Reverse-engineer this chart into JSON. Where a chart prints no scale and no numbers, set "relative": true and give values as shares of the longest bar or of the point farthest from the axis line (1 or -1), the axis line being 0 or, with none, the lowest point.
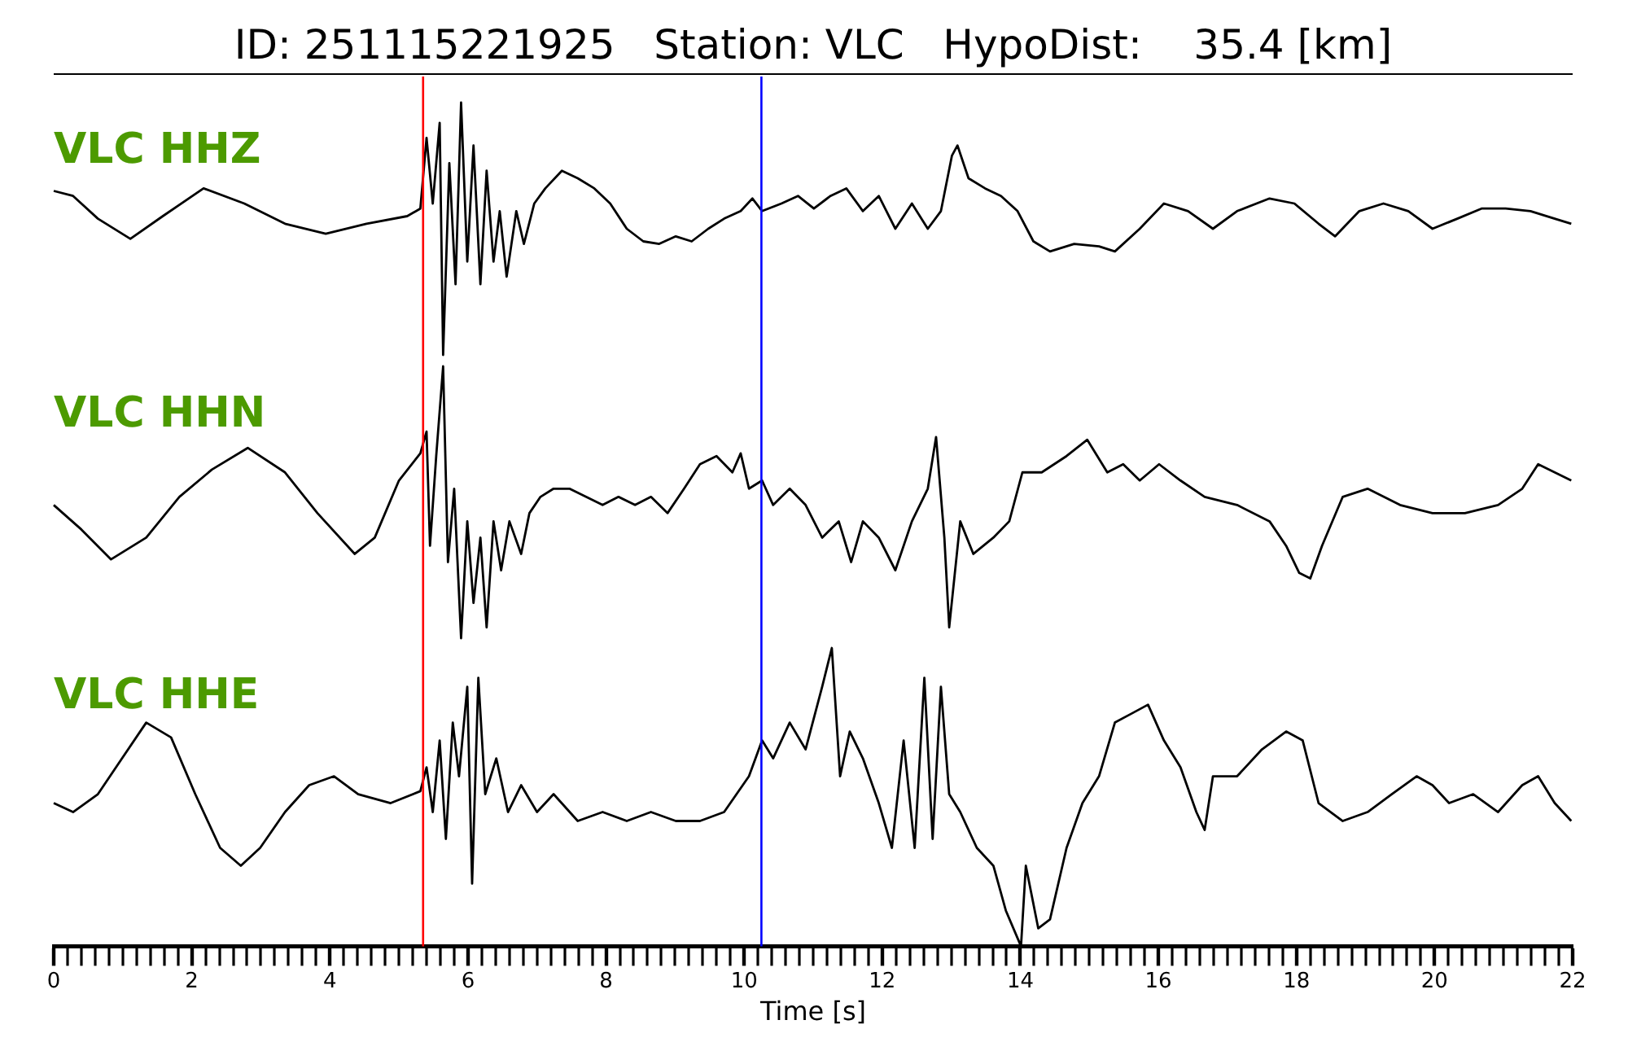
{
  "chart_data": [
    {
      "type": "line",
      "title": "ID: 251115221925   Station: VLC   HypoDist:    35.4 [km]",
      "relative": true,
      "xlim": [
        0,
        22
      ],
      "tick_labels": false,
      "ref_lines": [
        {
          "axis": "x",
          "value": 5.35,
          "color": "#ff0000"
        },
        {
          "axis": "x",
          "value": 10.25,
          "color": "#0000ff"
        }
      ],
      "series": [
        {
          "name": "VLC HHZ",
          "color": "#000000",
          "x": [
            0,
            0.28,
            0.64,
            1.11,
            1.58,
            2.17,
            2.76,
            3.35,
            3.94,
            4.53,
            5.12,
            5.31,
            5.4,
            5.49,
            5.59,
            5.64,
            5.73,
            5.82,
            5.9,
            5.99,
            6.08,
            6.18,
            6.27,
            6.37,
            6.46,
            6.56,
            6.7,
            6.81,
            6.96,
            7.12,
            7.36,
            7.59,
            7.83,
            8.06,
            8.3,
            8.54,
            8.77,
            9.01,
            9.24,
            9.48,
            9.71,
            9.95,
            10.12,
            10.26,
            10.54,
            10.78,
            11.01,
            11.25,
            11.48,
            11.72,
            11.95,
            12.19,
            12.43,
            12.66,
            12.85,
            13.01,
            13.09,
            13.25,
            13.49,
            13.72,
            13.96,
            14.19,
            14.43,
            14.78,
            15.14,
            15.37,
            15.73,
            16.08,
            16.43,
            16.79,
            17.14,
            17.61,
            17.97,
            18.32,
            18.56,
            18.91,
            19.26,
            19.62,
            19.97,
            20.33,
            20.68,
            21.03,
            21.39,
            21.74,
            21.98
          ],
          "values": [
            0.65,
            0.63,
            0.54,
            0.46,
            0.55,
            0.66,
            0.6,
            0.52,
            0.48,
            0.52,
            0.55,
            0.58,
            0.86,
            0.6,
            0.92,
            0,
            0.76,
            0.28,
            1,
            0.37,
            0.83,
            0.28,
            0.73,
            0.37,
            0.57,
            0.31,
            0.57,
            0.44,
            0.6,
            0.66,
            0.73,
            0.7,
            0.66,
            0.6,
            0.5,
            0.45,
            0.44,
            0.47,
            0.45,
            0.5,
            0.54,
            0.57,
            0.62,
            0.57,
            0.6,
            0.63,
            0.58,
            0.63,
            0.66,
            0.57,
            0.63,
            0.5,
            0.6,
            0.5,
            0.57,
            0.79,
            0.83,
            0.7,
            0.66,
            0.63,
            0.57,
            0.45,
            0.41,
            0.44,
            0.43,
            0.41,
            0.5,
            0.6,
            0.57,
            0.5,
            0.57,
            0.62,
            0.6,
            0.52,
            0.47,
            0.57,
            0.6,
            0.57,
            0.5,
            0.54,
            0.58,
            0.58,
            0.57,
            0.54,
            0.52
          ]
        }
      ]
    },
    {
      "type": "line",
      "relative": true,
      "xlim": [
        0,
        22
      ],
      "tick_labels": false,
      "ref_lines": [
        {
          "axis": "x",
          "value": 5.35,
          "color": "#ff0000"
        },
        {
          "axis": "x",
          "value": 10.25,
          "color": "#0000ff"
        }
      ],
      "series": [
        {
          "name": "VLC HHN",
          "color": "#000000",
          "x": [
            0,
            0.4,
            0.83,
            1.34,
            1.82,
            2.29,
            2.81,
            3.35,
            3.82,
            4.36,
            4.65,
            5.0,
            5.31,
            5.4,
            5.45,
            5.54,
            5.64,
            5.71,
            5.8,
            5.9,
            5.99,
            6.08,
            6.18,
            6.27,
            6.37,
            6.48,
            6.6,
            6.77,
            6.89,
            7.05,
            7.24,
            7.47,
            7.71,
            7.95,
            8.18,
            8.42,
            8.65,
            8.89,
            9.13,
            9.36,
            9.6,
            9.83,
            9.95,
            10.07,
            10.26,
            10.42,
            10.66,
            10.89,
            11.13,
            11.37,
            11.55,
            11.72,
            11.95,
            12.19,
            12.43,
            12.66,
            12.78,
            12.9,
            12.97,
            13.13,
            13.32,
            13.61,
            13.84,
            14.03,
            14.31,
            14.67,
            14.97,
            15.26,
            15.49,
            15.73,
            16.01,
            16.32,
            16.67,
            17.14,
            17.61,
            17.85,
            18.04,
            18.2,
            18.37,
            18.67,
            19.03,
            19.5,
            19.97,
            20.44,
            20.92,
            21.27,
            21.5,
            21.74,
            21.98
          ],
          "values": [
            0.49,
            0.4,
            0.29,
            0.37,
            0.52,
            0.62,
            0.7,
            0.61,
            0.46,
            0.31,
            0.37,
            0.58,
            0.68,
            0.76,
            0.34,
            0.67,
            1,
            0.28,
            0.55,
            0,
            0.43,
            0.13,
            0.37,
            0.04,
            0.43,
            0.25,
            0.43,
            0.31,
            0.46,
            0.52,
            0.55,
            0.55,
            0.52,
            0.49,
            0.52,
            0.49,
            0.52,
            0.46,
            0.55,
            0.64,
            0.67,
            0.61,
            0.68,
            0.55,
            0.58,
            0.49,
            0.55,
            0.49,
            0.37,
            0.43,
            0.28,
            0.43,
            0.37,
            0.25,
            0.43,
            0.55,
            0.74,
            0.37,
            0.04,
            0.43,
            0.31,
            0.37,
            0.43,
            0.61,
            0.61,
            0.67,
            0.73,
            0.61,
            0.64,
            0.58,
            0.64,
            0.58,
            0.52,
            0.49,
            0.43,
            0.34,
            0.24,
            0.22,
            0.34,
            0.52,
            0.55,
            0.49,
            0.46,
            0.46,
            0.49,
            0.55,
            0.64,
            0.61,
            0.58
          ]
        }
      ]
    },
    {
      "type": "line",
      "relative": true,
      "xlim": [
        0,
        22
      ],
      "tick_labels": "x",
      "xlabel": "Time [s]",
      "xticks": [
        0,
        {
          "value": 0.2,
          "label": null
        },
        {
          "value": 0.4,
          "label": null
        },
        {
          "value": 0.6,
          "label": null
        },
        {
          "value": 0.8,
          "label": null
        },
        {
          "value": 1,
          "label": null
        },
        {
          "value": 1.2,
          "label": null
        },
        {
          "value": 1.4,
          "label": null
        },
        {
          "value": 1.6,
          "label": null
        },
        {
          "value": 1.8,
          "label": null
        },
        2,
        {
          "value": 2.2,
          "label": null
        },
        {
          "value": 2.4,
          "label": null
        },
        {
          "value": 2.6,
          "label": null
        },
        {
          "value": 2.8,
          "label": null
        },
        {
          "value": 3,
          "label": null
        },
        {
          "value": 3.2,
          "label": null
        },
        {
          "value": 3.4,
          "label": null
        },
        {
          "value": 3.6,
          "label": null
        },
        {
          "value": 3.8,
          "label": null
        },
        4,
        {
          "value": 4.2,
          "label": null
        },
        {
          "value": 4.4,
          "label": null
        },
        {
          "value": 4.6,
          "label": null
        },
        {
          "value": 4.8,
          "label": null
        },
        {
          "value": 5,
          "label": null
        },
        {
          "value": 5.2,
          "label": null
        },
        {
          "value": 5.4,
          "label": null
        },
        {
          "value": 5.6,
          "label": null
        },
        {
          "value": 5.8,
          "label": null
        },
        6,
        {
          "value": 6.2,
          "label": null
        },
        {
          "value": 6.4,
          "label": null
        },
        {
          "value": 6.6,
          "label": null
        },
        {
          "value": 6.8,
          "label": null
        },
        {
          "value": 7,
          "label": null
        },
        {
          "value": 7.2,
          "label": null
        },
        {
          "value": 7.4,
          "label": null
        },
        {
          "value": 7.6,
          "label": null
        },
        {
          "value": 7.8,
          "label": null
        },
        8,
        {
          "value": 8.2,
          "label": null
        },
        {
          "value": 8.4,
          "label": null
        },
        {
          "value": 8.6,
          "label": null
        },
        {
          "value": 8.8,
          "label": null
        },
        {
          "value": 9,
          "label": null
        },
        {
          "value": 9.2,
          "label": null
        },
        {
          "value": 9.4,
          "label": null
        },
        {
          "value": 9.6,
          "label": null
        },
        {
          "value": 9.8,
          "label": null
        },
        10,
        {
          "value": 10.2,
          "label": null
        },
        {
          "value": 10.4,
          "label": null
        },
        {
          "value": 10.6,
          "label": null
        },
        {
          "value": 10.8,
          "label": null
        },
        {
          "value": 11,
          "label": null
        },
        {
          "value": 11.2,
          "label": null
        },
        {
          "value": 11.4,
          "label": null
        },
        {
          "value": 11.6,
          "label": null
        },
        {
          "value": 11.8,
          "label": null
        },
        12,
        {
          "value": 12.2,
          "label": null
        },
        {
          "value": 12.4,
          "label": null
        },
        {
          "value": 12.6,
          "label": null
        },
        {
          "value": 12.8,
          "label": null
        },
        {
          "value": 13,
          "label": null
        },
        {
          "value": 13.2,
          "label": null
        },
        {
          "value": 13.4,
          "label": null
        },
        {
          "value": 13.6,
          "label": null
        },
        {
          "value": 13.8,
          "label": null
        },
        14,
        {
          "value": 14.2,
          "label": null
        },
        {
          "value": 14.4,
          "label": null
        },
        {
          "value": 14.6,
          "label": null
        },
        {
          "value": 14.8,
          "label": null
        },
        {
          "value": 15,
          "label": null
        },
        {
          "value": 15.2,
          "label": null
        },
        {
          "value": 15.4,
          "label": null
        },
        {
          "value": 15.6,
          "label": null
        },
        {
          "value": 15.8,
          "label": null
        },
        16,
        {
          "value": 16.2,
          "label": null
        },
        {
          "value": 16.4,
          "label": null
        },
        {
          "value": 16.6,
          "label": null
        },
        {
          "value": 16.8,
          "label": null
        },
        {
          "value": 17,
          "label": null
        },
        {
          "value": 17.2,
          "label": null
        },
        {
          "value": 17.4,
          "label": null
        },
        {
          "value": 17.6,
          "label": null
        },
        {
          "value": 17.8,
          "label": null
        },
        18,
        {
          "value": 18.2,
          "label": null
        },
        {
          "value": 18.4,
          "label": null
        },
        {
          "value": 18.6,
          "label": null
        },
        {
          "value": 18.8,
          "label": null
        },
        {
          "value": 19,
          "label": null
        },
        {
          "value": 19.2,
          "label": null
        },
        {
          "value": 19.4,
          "label": null
        },
        {
          "value": 19.6,
          "label": null
        },
        {
          "value": 19.8,
          "label": null
        },
        20,
        {
          "value": 20.2,
          "label": null
        },
        {
          "value": 20.4,
          "label": null
        },
        {
          "value": 20.6,
          "label": null
        },
        {
          "value": 20.8,
          "label": null
        },
        {
          "value": 21,
          "label": null
        },
        {
          "value": 21.2,
          "label": null
        },
        {
          "value": 21.4,
          "label": null
        },
        {
          "value": 21.6,
          "label": null
        },
        {
          "value": 21.8,
          "label": null
        },
        22
      ],
      "ref_lines": [
        {
          "axis": "x",
          "value": 5.35,
          "color": "#ff0000"
        },
        {
          "axis": "x",
          "value": 10.25,
          "color": "#0000ff"
        }
      ],
      "series": [
        {
          "name": "VLC HHE",
          "color": "#000000",
          "x": [
            0,
            0.28,
            0.64,
            0.99,
            1.34,
            1.7,
            2.05,
            2.41,
            2.71,
            2.99,
            3.35,
            3.7,
            4.06,
            4.41,
            4.88,
            5.31,
            5.4,
            5.49,
            5.59,
            5.68,
            5.78,
            5.87,
            5.99,
            6.06,
            6.15,
            6.25,
            6.41,
            6.58,
            6.77,
            7.0,
            7.24,
            7.59,
            7.95,
            8.3,
            8.65,
            9.01,
            9.36,
            9.71,
            10.07,
            10.26,
            10.42,
            10.66,
            10.89,
            11.13,
            11.27,
            11.39,
            11.53,
            11.72,
            11.95,
            12.14,
            12.31,
            12.47,
            12.61,
            12.73,
            12.85,
            12.97,
            13.13,
            13.37,
            13.61,
            13.79,
            14.01,
            14.08,
            14.26,
            14.43,
            14.67,
            14.9,
            15.14,
            15.37,
            15.61,
            15.85,
            16.08,
            16.32,
            16.55,
            16.67,
            16.79,
            17.14,
            17.5,
            17.85,
            18.09,
            18.32,
            18.67,
            19.03,
            19.38,
            19.74,
            19.97,
            20.21,
            20.56,
            20.92,
            21.27,
            21.5,
            21.74,
            21.98
          ],
          "values": [
            0.48,
            0.45,
            0.51,
            0.63,
            0.75,
            0.7,
            0.51,
            0.33,
            0.27,
            0.33,
            0.45,
            0.54,
            0.57,
            0.51,
            0.48,
            0.52,
            0.6,
            0.45,
            0.69,
            0.36,
            0.75,
            0.57,
            0.87,
            0.21,
            0.9,
            0.51,
            0.63,
            0.45,
            0.54,
            0.45,
            0.51,
            0.42,
            0.45,
            0.42,
            0.45,
            0.42,
            0.42,
            0.45,
            0.57,
            0.69,
            0.63,
            0.75,
            0.66,
            0.87,
            1,
            0.57,
            0.72,
            0.63,
            0.48,
            0.33,
            0.69,
            0.33,
            0.9,
            0.36,
            0.87,
            0.51,
            0.45,
            0.33,
            0.27,
            0.12,
            0,
            0.27,
            0.06,
            0.09,
            0.33,
            0.48,
            0.57,
            0.75,
            0.78,
            0.81,
            0.69,
            0.6,
            0.45,
            0.39,
            0.57,
            0.57,
            0.66,
            0.72,
            0.69,
            0.48,
            0.42,
            0.45,
            0.51,
            0.57,
            0.54,
            0.48,
            0.51,
            0.45,
            0.54,
            0.57,
            0.48,
            0.42
          ]
        }
      ]
    }
  ]
}
